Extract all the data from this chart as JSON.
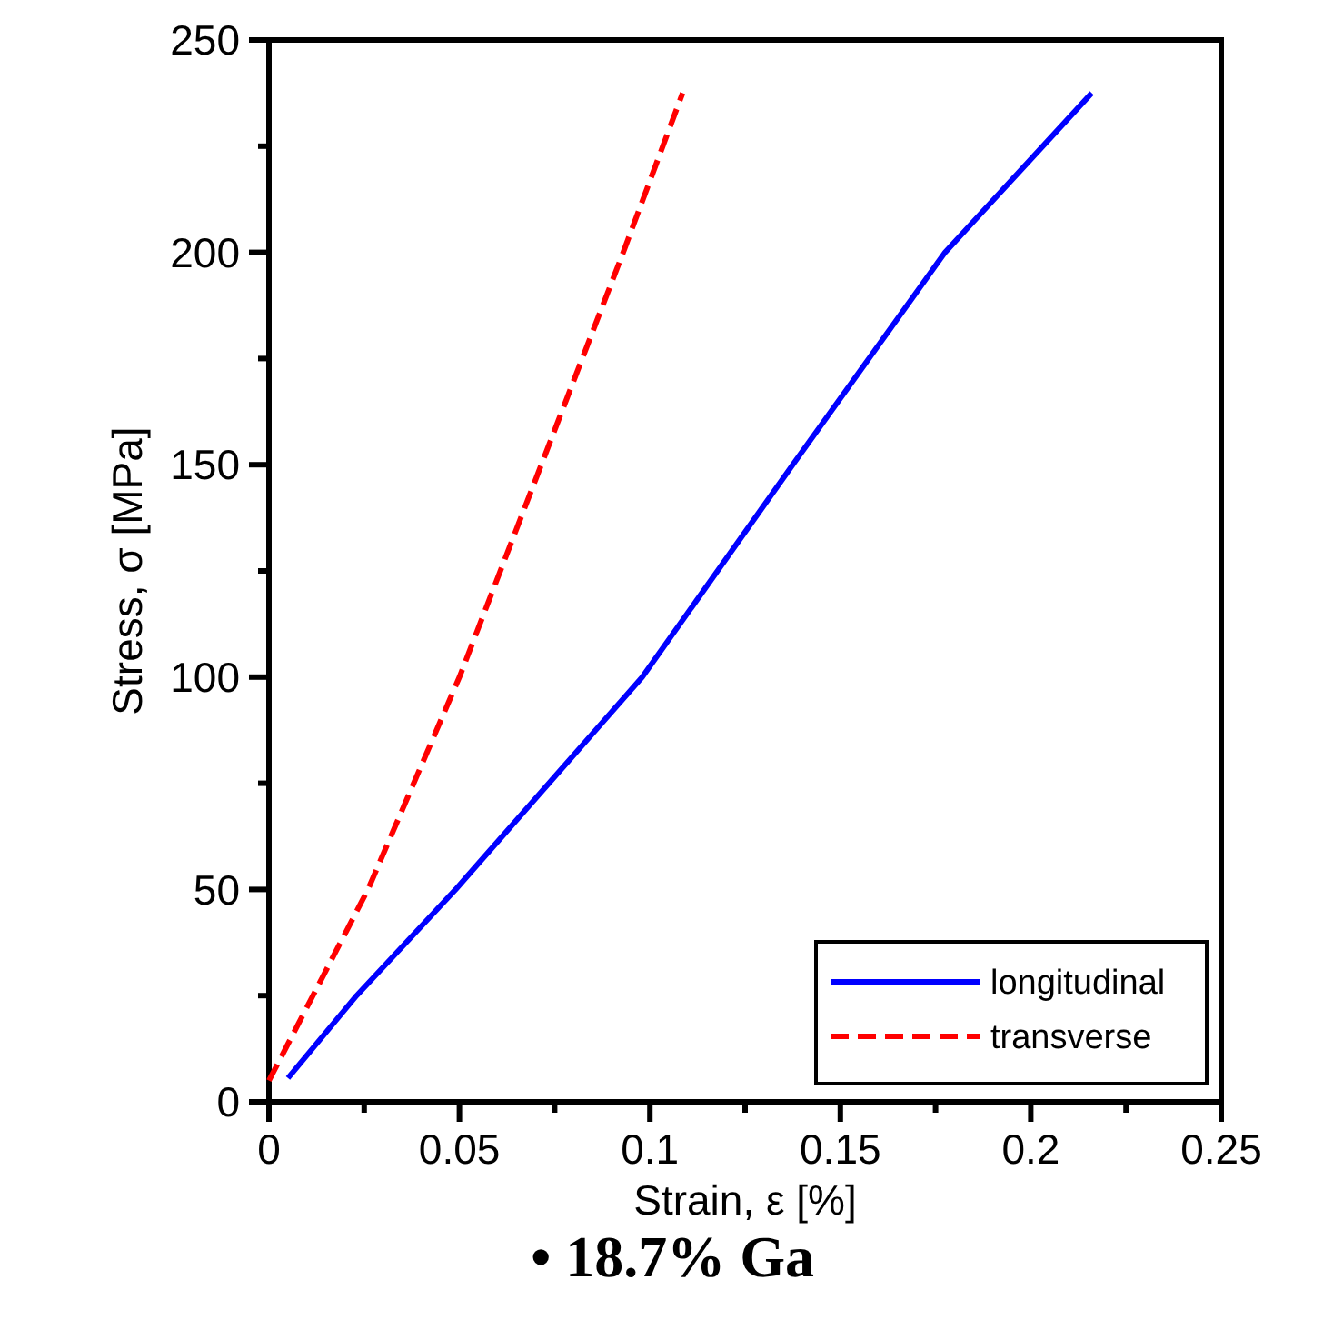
{
  "chart_data": {
    "type": "line",
    "xlabel": "Strain, ε [%]",
    "ylabel": "Stress, σ [MPa]",
    "annotations": [
      "• 18.7% Ga"
    ],
    "xlim": [
      0,
      0.25
    ],
    "ylim": [
      0,
      250
    ],
    "xticks": [
      0,
      {
        "value": 0.025,
        "label": null
      },
      0.05,
      {
        "value": 0.075,
        "label": null
      },
      0.1,
      {
        "value": 0.125,
        "label": null
      },
      0.15,
      {
        "value": 0.175,
        "label": null
      },
      0.2,
      {
        "value": 0.225,
        "label": null
      },
      0.25
    ],
    "yticks": [
      0,
      {
        "value": 25,
        "label": null
      },
      50,
      {
        "value": 75,
        "label": null
      },
      100,
      {
        "value": 125,
        "label": null
      },
      150,
      {
        "value": 175,
        "label": null
      },
      200,
      {
        "value": 225,
        "label": null
      },
      250
    ],
    "grid": false,
    "legend": "bottom right",
    "series": [
      {
        "name": "longitudinal",
        "color": "#0000ff",
        "line_style": "solid",
        "x": [
          0.005,
          0.023,
          0.049,
          0.098,
          0.1375,
          0.1775,
          0.216
        ],
        "values": [
          5.6,
          25,
          50,
          100,
          150,
          200,
          237.5
        ]
      },
      {
        "name": "transverse",
        "color": "#ff0000",
        "line_style": "dashed",
        "x": [
          0,
          0.026,
          0.05,
          0.0715,
          0.093,
          0.1086
        ],
        "values": [
          5,
          50,
          100,
          150,
          200,
          237.5
        ]
      }
    ]
  }
}
